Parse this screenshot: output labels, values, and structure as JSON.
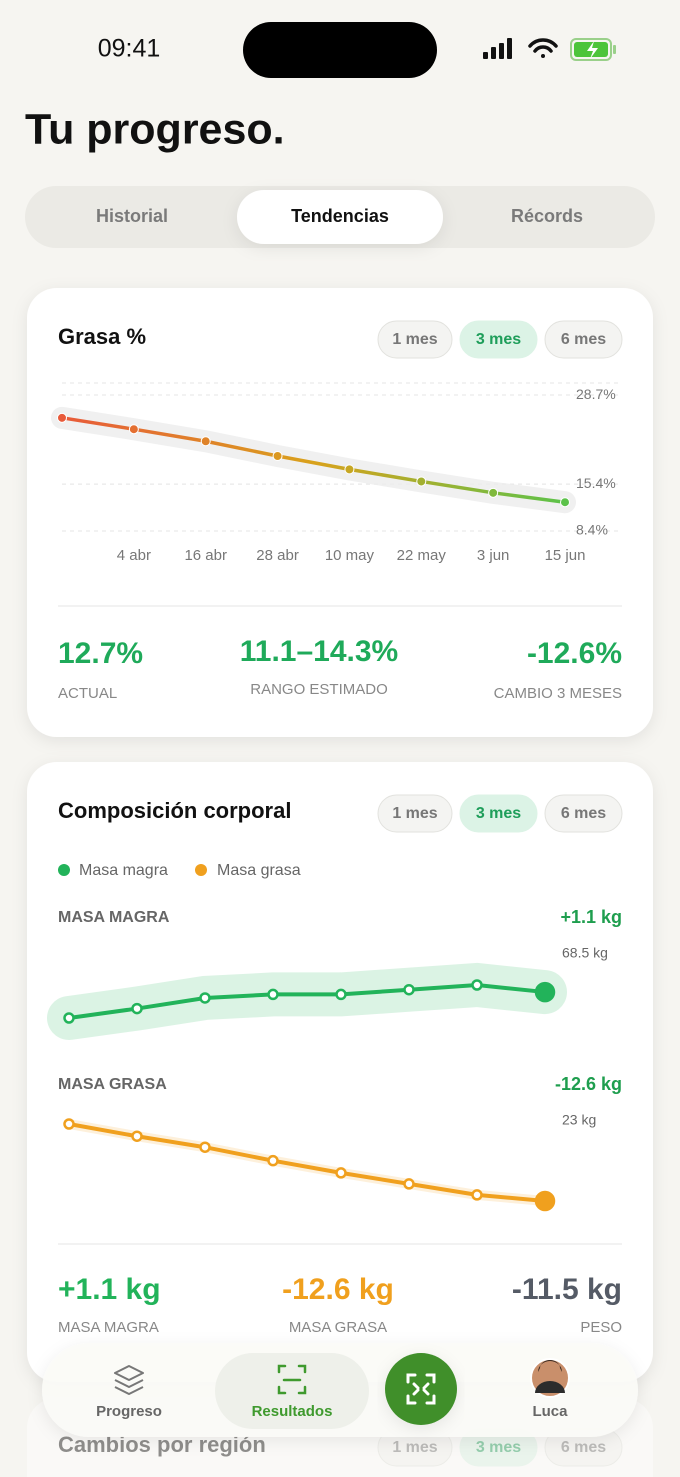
{
  "status_bar": {
    "time": "09:41"
  },
  "header": {
    "title": "Tu progreso."
  },
  "tabs": [
    "Historial",
    "Tendencias",
    "Récords"
  ],
  "fat_card": {
    "title": "Grasa %",
    "periods": [
      "1 mes",
      "3 mes",
      "6 mes"
    ],
    "chart": {
      "type": "line",
      "categories": [
        null,
        "4 abr",
        "16 abr",
        "28 abr",
        "10 may",
        "22 may",
        "3 jun",
        "15 jun"
      ],
      "values": [
        25.3,
        23.6,
        21.8,
        19.6,
        17.6,
        15.8,
        14.1,
        12.7
      ],
      "ylim": [
        8.4,
        30.5
      ],
      "yticks": [
        {
          "value": 28.7,
          "label": "28.7%"
        },
        {
          "value": 15.4,
          "label": "15.4%"
        },
        {
          "value": 8.4,
          "label": "8.4%"
        }
      ],
      "grid": true
    },
    "stats": [
      {
        "value": "12.7%",
        "label": "ACTUAL"
      },
      {
        "value": "11.1–14.3%",
        "label": "RANGO ESTIMADO"
      },
      {
        "value": "-12.6%",
        "label": "CAMBIO 3 MESES"
      }
    ]
  },
  "composition_card": {
    "title": "Composición corporal",
    "periods": [
      "1 mes",
      "3 mes",
      "6 mes"
    ],
    "legend": [
      "Masa magra",
      "Masa grasa"
    ],
    "lean": {
      "label": "MASA MAGRA",
      "change": "+1.1 kg",
      "latest": "68.5 kg",
      "color": "#22b35a",
      "values": [
        67.4,
        67.8,
        68.25,
        68.4,
        68.4,
        68.6,
        68.8,
        68.5
      ]
    },
    "fat": {
      "label": "MASA GRASA",
      "change": "-12.6 kg",
      "latest": "23 kg",
      "color": "#f0a01e",
      "values": [
        35.6,
        33.6,
        31.8,
        29.6,
        27.6,
        25.8,
        24.0,
        23.0
      ]
    },
    "stats": [
      {
        "value": "+1.1 kg",
        "label": "MASA MAGRA"
      },
      {
        "value": "-12.6 kg",
        "label": "MASA GRASA"
      },
      {
        "value": "-11.5 kg",
        "label": "PESO"
      }
    ]
  },
  "regions_card": {
    "title": "Cambios por región",
    "periods": [
      "1 mes",
      "3 mes",
      "6 mes"
    ]
  },
  "nav": [
    "Progreso",
    "Resultados",
    "Luca"
  ]
}
